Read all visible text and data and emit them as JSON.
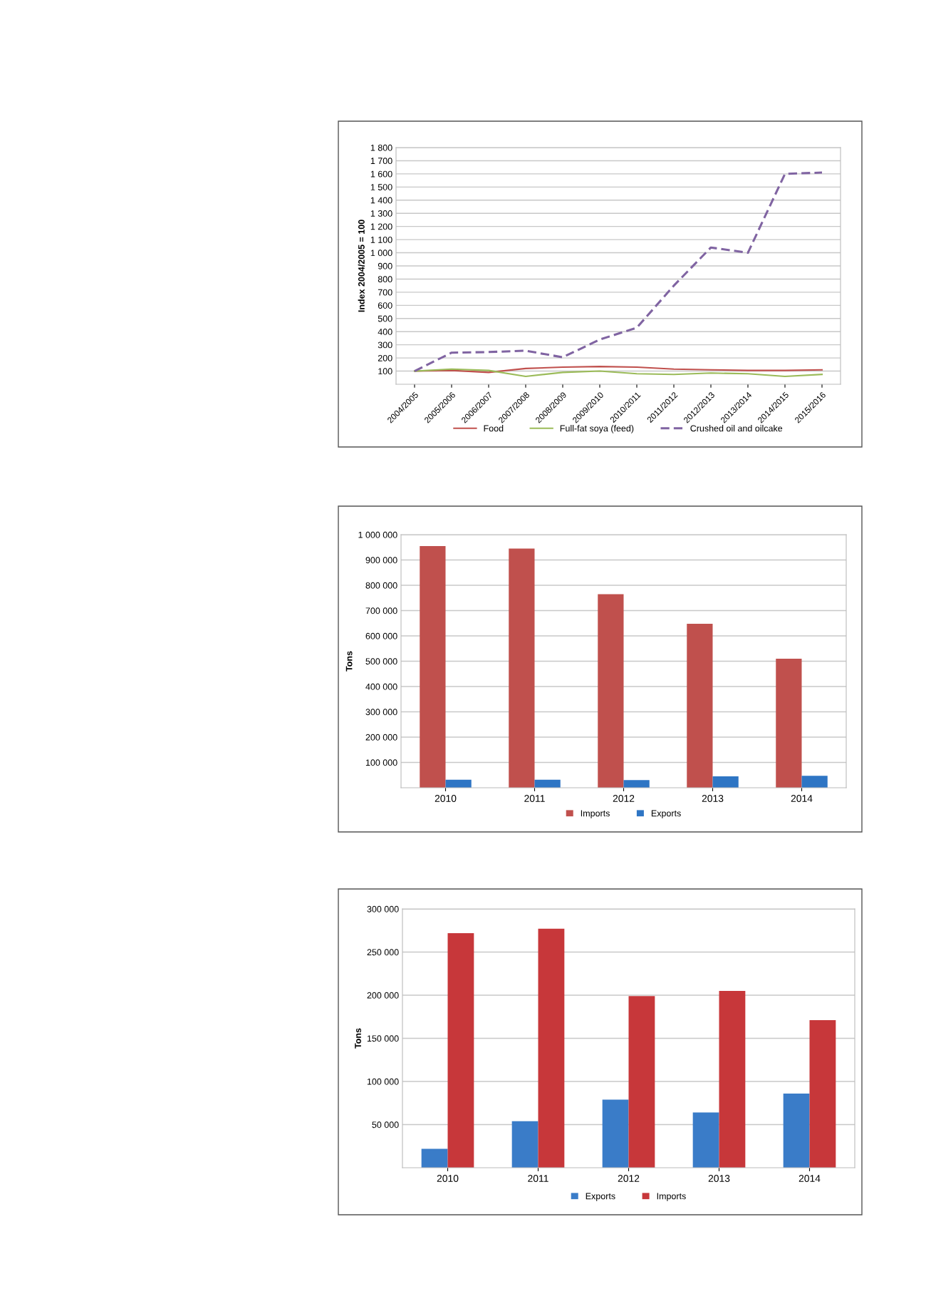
{
  "chart_data": [
    {
      "type": "line",
      "ylabel": "Index 2004/2005 = 100",
      "categories": [
        "2004/2005",
        "2005/2006",
        "2006/2007",
        "2007/2008",
        "2008/2009",
        "2009/2010",
        "2010/2011",
        "2011/2012",
        "2012/2013",
        "2013/2014",
        "2014/2015",
        "2015/2016"
      ],
      "series": [
        {
          "name": "Food",
          "color": "#c0504d",
          "line_style": "solid",
          "values": [
            100,
            105,
            90,
            120,
            130,
            135,
            130,
            115,
            110,
            105,
            105,
            110
          ]
        },
        {
          "name": "Full-fat soya (feed)",
          "color": "#9bbb59",
          "line_style": "solid",
          "values": [
            100,
            115,
            105,
            60,
            90,
            100,
            80,
            75,
            85,
            80,
            60,
            75
          ]
        },
        {
          "name": "Crushed oil and oilcake",
          "color": "#8064a2",
          "line_style": "dashed",
          "values": [
            100,
            240,
            245,
            255,
            205,
            340,
            430,
            750,
            1040,
            1000,
            1600,
            1610
          ]
        }
      ],
      "ylim": [
        0,
        1800
      ],
      "yticks": [
        100,
        200,
        300,
        400,
        500,
        600,
        700,
        800,
        900,
        {
          "value": 1000,
          "label": "1 000"
        },
        {
          "value": 1100,
          "label": "1 100"
        },
        {
          "value": 1200,
          "label": "1 200"
        },
        {
          "value": 1300,
          "label": "1 300"
        },
        {
          "value": 1400,
          "label": "1 400"
        },
        {
          "value": 1500,
          "label": "1 500"
        },
        {
          "value": 1600,
          "label": "1 600"
        },
        {
          "value": 1700,
          "label": "1 700"
        },
        {
          "value": 1800,
          "label": "1 800"
        }
      ],
      "grid": "y",
      "legend": "bottom",
      "marker": "none"
    },
    {
      "type": "bar",
      "ylabel": "Tons",
      "categories": [
        "2010",
        "2011",
        "2012",
        "2013",
        "2014"
      ],
      "series": [
        {
          "name": "Imports",
          "color": "#c0504d",
          "values": [
            955000,
            945000,
            765000,
            648000,
            510000
          ]
        },
        {
          "name": "Exports",
          "color": "#2e75c4",
          "values": [
            32000,
            32000,
            30000,
            45000,
            47000
          ]
        }
      ],
      "ylim": [
        0,
        1000000
      ],
      "yticks": [
        {
          "value": 100000,
          "label": "100 000"
        },
        {
          "value": 200000,
          "label": "200 000"
        },
        {
          "value": 300000,
          "label": "300 000"
        },
        {
          "value": 400000,
          "label": "400 000"
        },
        {
          "value": 500000,
          "label": "500 000"
        },
        {
          "value": 600000,
          "label": "600 000"
        },
        {
          "value": 700000,
          "label": "700 000"
        },
        {
          "value": 800000,
          "label": "800 000"
        },
        {
          "value": 900000,
          "label": "900 000"
        },
        {
          "value": 1000000,
          "label": "1 000 000"
        }
      ],
      "grid": "y",
      "legend": "bottom"
    },
    {
      "type": "bar",
      "ylabel": "Tons",
      "categories": [
        "2010",
        "2011",
        "2012",
        "2013",
        "2014"
      ],
      "series": [
        {
          "name": "Exports",
          "color": "#3a7cc8",
          "values": [
            22000,
            54000,
            79000,
            64000,
            86000
          ]
        },
        {
          "name": "Imports",
          "color": "#c7373a",
          "values": [
            272000,
            277000,
            199000,
            205000,
            171000
          ]
        }
      ],
      "ylim": [
        0,
        300000
      ],
      "yticks": [
        {
          "value": 50000,
          "label": "50 000"
        },
        {
          "value": 100000,
          "label": "100 000"
        },
        {
          "value": 150000,
          "label": "150 000"
        },
        {
          "value": 200000,
          "label": "200 000"
        },
        {
          "value": 250000,
          "label": "250 000"
        },
        {
          "value": 300000,
          "label": "300 000"
        }
      ],
      "grid": "y",
      "legend": "bottom"
    }
  ]
}
